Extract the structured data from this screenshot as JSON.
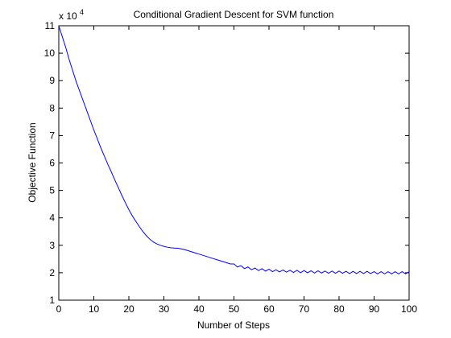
{
  "chart_data": {
    "type": "line",
    "title": "Conditional Gradient Descent for SVM function",
    "xlabel": "Number of Steps",
    "ylabel": "Objective Function",
    "y_multiplier_base": "x 10",
    "y_multiplier_exp": "4",
    "xlim": [
      0,
      100
    ],
    "ylim": [
      1,
      11
    ],
    "xticks": [
      "0",
      "10",
      "20",
      "30",
      "40",
      "50",
      "60",
      "70",
      "80",
      "90",
      "100"
    ],
    "yticks": [
      "1",
      "2",
      "3",
      "4",
      "5",
      "6",
      "7",
      "8",
      "9",
      "10",
      "11"
    ],
    "grid": false,
    "line_color": "#0000ff",
    "series": [
      {
        "values": [
          11.0,
          10.6,
          10.2,
          9.75,
          9.35,
          8.95,
          8.6,
          8.25,
          7.9,
          7.55,
          7.2,
          6.88,
          6.55,
          6.25,
          5.95,
          5.67,
          5.38,
          5.1,
          4.82,
          4.55,
          4.3,
          4.07,
          3.87,
          3.68,
          3.5,
          3.35,
          3.22,
          3.12,
          3.05,
          3.0,
          2.96,
          2.93,
          2.91,
          2.9,
          2.89,
          2.87,
          2.84,
          2.8,
          2.76,
          2.72,
          2.68,
          2.64,
          2.6,
          2.56,
          2.52,
          2.48,
          2.44,
          2.4,
          2.36,
          2.32,
          2.28,
          2.25,
          2.22,
          2.19,
          2.17,
          2.15,
          2.13,
          2.12,
          2.11,
          2.1,
          2.09,
          2.08,
          2.07,
          2.07,
          2.06,
          2.06,
          2.05,
          2.05,
          2.05,
          2.04,
          2.04,
          2.04,
          2.03,
          2.03,
          2.03,
          2.03,
          2.02,
          2.02,
          2.02,
          2.02,
          2.02,
          2.02,
          2.01,
          2.01,
          2.01,
          2.01,
          2.01,
          2.01,
          2.01,
          2.01,
          2.0,
          2.0,
          2.0,
          2.0,
          2.0,
          2.0,
          2.0,
          2.0,
          2.0,
          2.0,
          2.0
        ],
        "oscillation_amplitude_from_step_50": 0.04
      }
    ]
  }
}
